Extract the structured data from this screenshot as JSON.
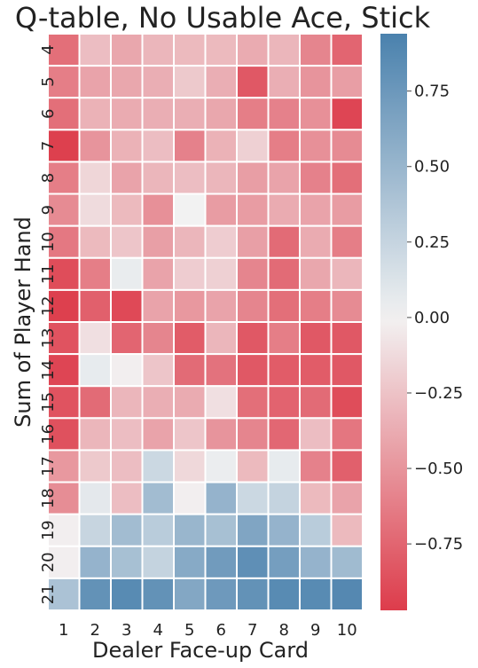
{
  "chart_data": {
    "type": "heatmap",
    "title": "Q-table, No Usable Ace, Stick",
    "xlabel": "Dealer Face-up Card",
    "ylabel": "Sum of Player Hand",
    "x_categories": [
      "1",
      "2",
      "3",
      "4",
      "5",
      "6",
      "7",
      "8",
      "9",
      "10"
    ],
    "y_categories": [
      "4",
      "5",
      "6",
      "7",
      "8",
      "9",
      "10",
      "11",
      "12",
      "13",
      "14",
      "15",
      "16",
      "17",
      "18",
      "19",
      "20",
      "21"
    ],
    "values": [
      [
        -0.7,
        -0.28,
        -0.4,
        -0.32,
        -0.3,
        -0.3,
        -0.38,
        -0.32,
        -0.58,
        -0.75
      ],
      [
        -0.62,
        -0.42,
        -0.4,
        -0.36,
        -0.22,
        -0.36,
        -0.82,
        -0.36,
        -0.5,
        -0.45
      ],
      [
        -0.7,
        -0.34,
        -0.38,
        -0.36,
        -0.36,
        -0.4,
        -0.62,
        -0.6,
        -0.52,
        -0.92
      ],
      [
        -0.95,
        -0.5,
        -0.34,
        -0.28,
        -0.6,
        -0.34,
        -0.18,
        -0.62,
        -0.52,
        -0.55
      ],
      [
        -0.62,
        -0.15,
        -0.42,
        -0.32,
        -0.28,
        -0.32,
        -0.45,
        -0.42,
        -0.6,
        -0.7
      ],
      [
        -0.55,
        -0.12,
        -0.3,
        -0.52,
        0.0,
        -0.46,
        -0.46,
        -0.38,
        -0.42,
        -0.46
      ],
      [
        -0.65,
        -0.3,
        -0.24,
        -0.44,
        -0.32,
        -0.2,
        -0.44,
        -0.72,
        -0.38,
        -0.62
      ],
      [
        -0.88,
        -0.62,
        0.05,
        -0.42,
        -0.2,
        -0.18,
        -0.58,
        -0.72,
        -0.4,
        -0.32
      ],
      [
        -0.95,
        -0.78,
        -0.9,
        -0.42,
        -0.48,
        -0.42,
        -0.58,
        -0.7,
        -0.62,
        -0.55
      ],
      [
        -0.85,
        -0.1,
        -0.75,
        -0.58,
        -0.8,
        -0.32,
        -0.82,
        -0.62,
        -0.82,
        -0.82
      ],
      [
        -0.92,
        0.06,
        -0.02,
        -0.24,
        -0.72,
        -0.68,
        -0.82,
        -0.8,
        -0.8,
        -0.82
      ],
      [
        -0.85,
        -0.72,
        -0.32,
        -0.36,
        -0.38,
        -0.1,
        -0.7,
        -0.76,
        -0.72,
        -0.88
      ],
      [
        -0.86,
        -0.32,
        -0.28,
        -0.42,
        -0.24,
        -0.5,
        -0.58,
        -0.74,
        -0.28,
        -0.66
      ],
      [
        -0.48,
        -0.22,
        -0.28,
        0.22,
        -0.14,
        0.04,
        -0.3,
        0.06,
        -0.6,
        -0.78
      ],
      [
        -0.54,
        0.08,
        -0.28,
        0.45,
        -0.02,
        0.52,
        0.22,
        0.26,
        -0.3,
        -0.42
      ],
      [
        -0.02,
        0.24,
        0.45,
        0.32,
        0.5,
        0.42,
        0.64,
        0.52,
        0.32,
        -0.3
      ],
      [
        -0.02,
        0.52,
        0.42,
        0.26,
        0.6,
        0.72,
        0.82,
        0.7,
        0.52,
        0.46
      ],
      [
        0.4,
        0.8,
        0.86,
        0.8,
        0.62,
        0.74,
        0.8,
        0.86,
        0.86,
        0.88
      ]
    ],
    "colorbar": {
      "vmin": -0.97,
      "vmax": 0.94,
      "ticks": [
        0.75,
        0.5,
        0.25,
        0.0,
        -0.25,
        -0.5,
        -0.75
      ],
      "tick_labels": [
        "0.75",
        "0.50",
        "0.25",
        "0.00",
        "−0.25",
        "−0.50",
        "−0.75"
      ],
      "low_color": "#dd3c4b",
      "mid_color": "#f2f2f2",
      "high_color": "#4a81ad"
    },
    "grid": false,
    "legend": "colorbar-right"
  }
}
